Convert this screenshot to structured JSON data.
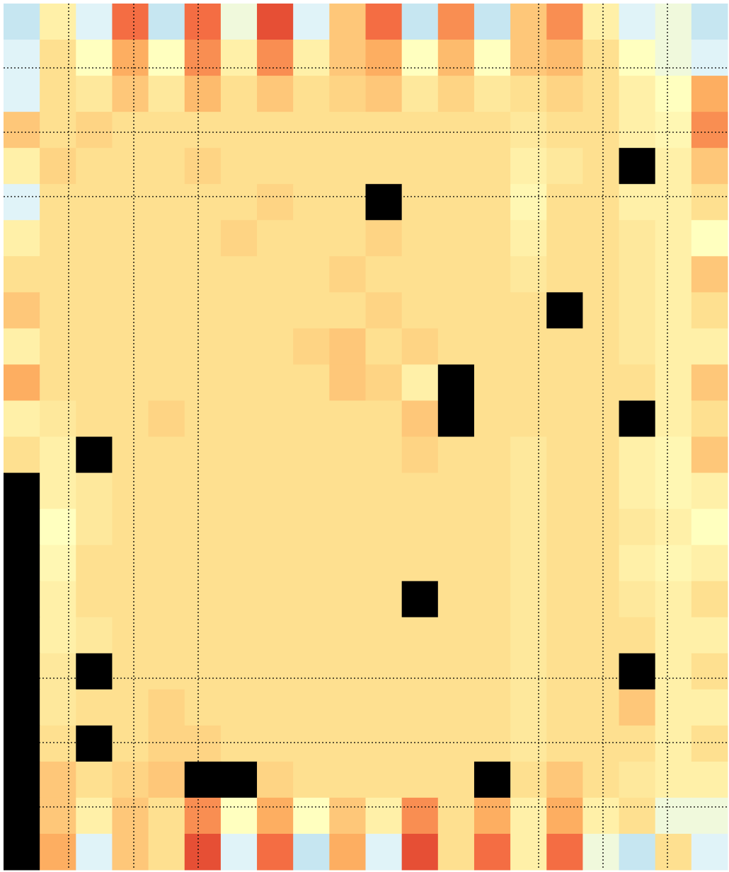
{
  "chart_data": {
    "type": "heatmap",
    "zlim": [
      -1,
      1
    ],
    "colorscale": [
      "#313695",
      "#4575b4",
      "#74add1",
      "#abd9e9",
      "#e0f3f8",
      "#ffffbf",
      "#fee090",
      "#fdae61",
      "#f46d43",
      "#d73027",
      "#a50026"
    ],
    "null_color": "#000000",
    "values": [
      [
        -0.3,
        0.1,
        -0.2,
        0.6,
        -0.3,
        0.6,
        -0.1,
        0.7,
        -0.2,
        0.3,
        0.6,
        -0.3,
        0.5,
        -0.3,
        0.3,
        0.5,
        0.1,
        -0.2,
        -0.1,
        -0.3
      ],
      [
        -0.2,
        0.2,
        0,
        0.4,
        0,
        0.5,
        0.1,
        0.5,
        0.1,
        0.3,
        0.4,
        0,
        0.35,
        0,
        0.3,
        0.35,
        0.2,
        0,
        -0.1,
        -0.2
      ],
      [
        -0.2,
        0.2,
        0.15,
        0.3,
        0.15,
        0.35,
        0.2,
        0.3,
        0.2,
        0.25,
        0.3,
        0.15,
        0.25,
        0.15,
        0.2,
        0.25,
        0.2,
        0.1,
        0,
        0.4
      ],
      [
        0.3,
        0.2,
        0.25,
        0.2,
        0.2,
        0.2,
        0.2,
        0.2,
        0.2,
        0.2,
        0.2,
        0.2,
        0.2,
        0.2,
        0.15,
        0.2,
        0.2,
        0.1,
        0.05,
        0.5
      ],
      [
        0.1,
        0.25,
        0.2,
        0.2,
        0.2,
        0.25,
        0.2,
        0.2,
        0.2,
        0.2,
        0.2,
        0.2,
        0.2,
        0.2,
        0.1,
        0.15,
        0.2,
        null,
        0.1,
        0.3
      ],
      [
        -0.2,
        0.2,
        0.2,
        0.2,
        0.2,
        0.2,
        0.2,
        0.25,
        0.2,
        0.2,
        null,
        0.2,
        0.2,
        0.2,
        0.05,
        0.2,
        0.2,
        0.1,
        0.1,
        0.2
      ],
      [
        0.1,
        0.2,
        0.2,
        0.2,
        0.2,
        0.2,
        0.25,
        0.2,
        0.2,
        0.2,
        0.25,
        0.2,
        0.2,
        0.2,
        0.1,
        0.2,
        0.2,
        0.15,
        0.1,
        0.0
      ],
      [
        0.2,
        0.2,
        0.2,
        0.2,
        0.2,
        0.2,
        0.2,
        0.2,
        0.2,
        0.25,
        0.2,
        0.2,
        0.2,
        0.2,
        0.15,
        0.2,
        0.2,
        0.15,
        0.1,
        0.3
      ],
      [
        0.3,
        0.2,
        0.2,
        0.2,
        0.2,
        0.2,
        0.2,
        0.2,
        0.2,
        0.2,
        0.25,
        0.2,
        0.2,
        0.2,
        0.2,
        null,
        0.2,
        0.15,
        0.1,
        0.2
      ],
      [
        0.1,
        0.2,
        0.2,
        0.2,
        0.2,
        0.2,
        0.2,
        0.2,
        0.25,
        0.3,
        0.2,
        0.25,
        0.2,
        0.2,
        0.2,
        0.2,
        0.2,
        0.15,
        0.1,
        0.1
      ],
      [
        0.4,
        0.2,
        0.2,
        0.2,
        0.2,
        0.2,
        0.2,
        0.2,
        0.2,
        0.3,
        0.25,
        0.1,
        null,
        0.2,
        0.2,
        0.2,
        0.2,
        0.2,
        0.1,
        0.3
      ],
      [
        0.1,
        0.15,
        0.2,
        0.2,
        0.25,
        0.2,
        0.2,
        0.2,
        0.2,
        0.2,
        0.2,
        0.3,
        null,
        0.2,
        0.2,
        0.2,
        0.2,
        null,
        0.1,
        0.2
      ],
      [
        0.2,
        0.1,
        null,
        0.2,
        0.2,
        0.2,
        0.2,
        0.2,
        0.2,
        0.2,
        0.2,
        0.25,
        0.2,
        0.2,
        0.15,
        0.2,
        0.2,
        0.1,
        0.05,
        0.3
      ],
      [
        null,
        0.1,
        0.15,
        0.2,
        0.2,
        0.2,
        0.2,
        0.2,
        0.2,
        0.2,
        0.2,
        0.2,
        0.2,
        0.2,
        0.15,
        0.2,
        0.2,
        0.1,
        0.05,
        0.1
      ],
      [
        null,
        0.0,
        0.15,
        0.2,
        0.2,
        0.2,
        0.2,
        0.2,
        0.2,
        0.2,
        0.2,
        0.2,
        0.2,
        0.2,
        0.15,
        0.2,
        0.2,
        0.15,
        0.1,
        0.0
      ],
      [
        null,
        0.05,
        0.2,
        0.2,
        0.2,
        0.2,
        0.2,
        0.2,
        0.2,
        0.2,
        0.2,
        0.2,
        0.2,
        0.2,
        0.15,
        0.2,
        0.2,
        0.1,
        0.05,
        0.1
      ],
      [
        null,
        0.1,
        0.2,
        0.2,
        0.2,
        0.2,
        0.2,
        0.2,
        0.2,
        0.2,
        0.2,
        null,
        0.2,
        0.2,
        0.15,
        0.2,
        0.2,
        0.15,
        0.1,
        0.2
      ],
      [
        null,
        0.1,
        0.15,
        0.2,
        0.2,
        0.2,
        0.2,
        0.2,
        0.2,
        0.2,
        0.2,
        0.2,
        0.2,
        0.2,
        0.15,
        0.2,
        0.2,
        0.2,
        0.1,
        0.1
      ],
      [
        null,
        0.15,
        null,
        0.2,
        0.2,
        0.2,
        0.2,
        0.2,
        0.2,
        0.2,
        0.2,
        0.2,
        0.2,
        0.2,
        0.15,
        0.2,
        0.2,
        null,
        0.1,
        0.2
      ],
      [
        null,
        0.15,
        0.2,
        0.2,
        0.25,
        0.2,
        0.2,
        0.2,
        0.2,
        0.2,
        0.2,
        0.2,
        0.2,
        0.2,
        0.15,
        0.2,
        0.2,
        0.3,
        0.1,
        0.1
      ],
      [
        null,
        0.2,
        null,
        0.2,
        0.25,
        0.25,
        0.2,
        0.2,
        0.2,
        0.2,
        0.2,
        0.2,
        0.2,
        0.2,
        0.15,
        0.2,
        0.2,
        0.2,
        0.1,
        0.2
      ],
      [
        null,
        0.3,
        0.2,
        0.25,
        0.3,
        null,
        null,
        0.25,
        0.2,
        0.2,
        0.2,
        0.2,
        0.2,
        null,
        0.2,
        0.3,
        0.2,
        0.15,
        0.1,
        0.1
      ],
      [
        null,
        0.3,
        0.1,
        0.3,
        0.2,
        0.5,
        0.0,
        0.4,
        0.0,
        0.3,
        0.1,
        0.5,
        0.2,
        0.4,
        0.1,
        0.4,
        0.1,
        0.2,
        -0.1,
        -0.1
      ],
      [
        null,
        0.4,
        -0.2,
        0.3,
        0.2,
        0.7,
        -0.2,
        0.6,
        -0.3,
        0.4,
        -0.2,
        0.7,
        0.2,
        0.6,
        0.1,
        0.6,
        -0.1,
        -0.3,
        0.2,
        -0.2
      ]
    ]
  }
}
